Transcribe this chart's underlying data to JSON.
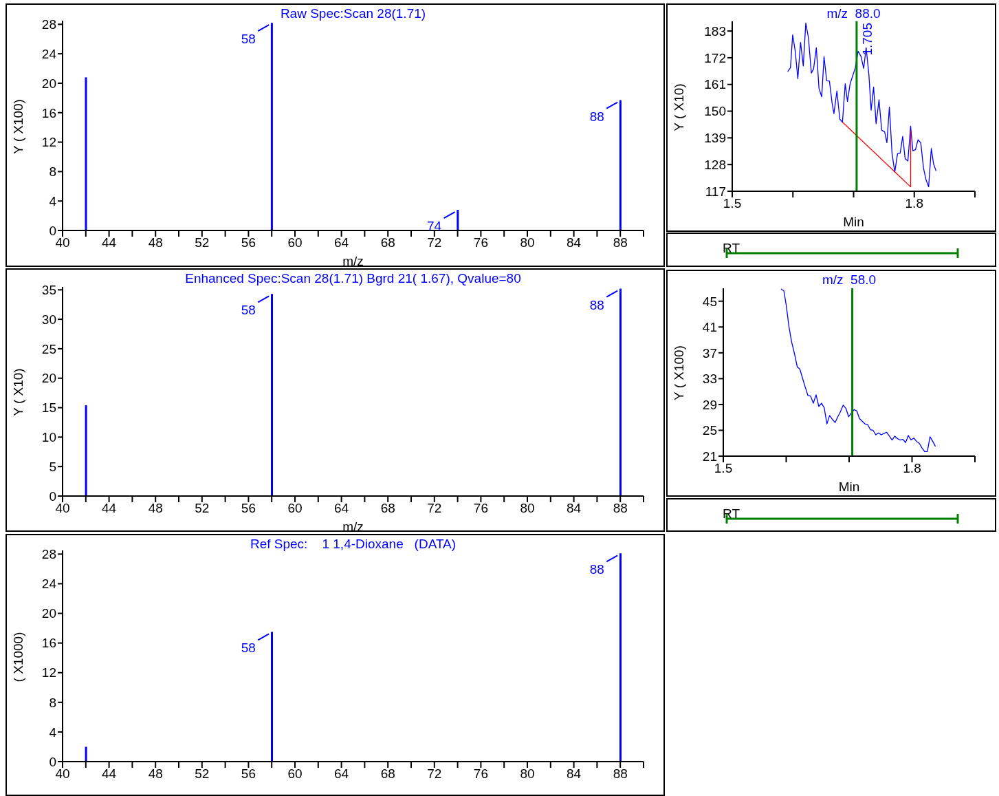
{
  "chart_data": [
    {
      "type": "bar",
      "title": "Raw Spec:Scan 28(1.71)",
      "xlabel": "m/z",
      "ylabel": "Y ( X100)",
      "x": [
        42,
        58,
        74,
        88
      ],
      "series": [
        {
          "color": "#0000ff",
          "values": [
            20.8,
            28.2,
            2.8,
            17.7
          ]
        }
      ],
      "xlim": [
        40,
        90
      ],
      "xticks": [
        40,
        {
          "value": 42,
          "label": null
        },
        44,
        {
          "value": 46,
          "label": null
        },
        48,
        {
          "value": 50,
          "label": null
        },
        52,
        {
          "value": 54,
          "label": null
        },
        56,
        {
          "value": 58,
          "label": null
        },
        60,
        {
          "value": 62,
          "label": null
        },
        64,
        {
          "value": 66,
          "label": null
        },
        68,
        {
          "value": 70,
          "label": null
        },
        72,
        {
          "value": 74,
          "label": null
        },
        76,
        {
          "value": 78,
          "label": null
        },
        80,
        {
          "value": 82,
          "label": null
        },
        84,
        {
          "value": 86,
          "label": null
        },
        88,
        {
          "value": 90,
          "label": null
        }
      ],
      "ylim": [
        0,
        28.5
      ],
      "yticks": [
        0,
        4,
        8,
        12,
        16,
        20,
        24,
        28
      ],
      "annotations": [
        {
          "text": "58",
          "x": 58,
          "y": 28.2
        },
        {
          "text": "74",
          "x": 74,
          "y": 2.8
        },
        {
          "text": "88",
          "x": 88,
          "y": 17.7
        }
      ]
    },
    {
      "type": "line",
      "title": "m/z  88.0",
      "xlabel": "Min",
      "ylabel": "Y ( X10)",
      "series": [
        {
          "color": "#0000ff",
          "x": [
            1.5914,
            1.596,
            1.5996,
            1.6037,
            1.6081,
            1.6126,
            1.6171,
            1.6212,
            1.6256,
            1.6304,
            1.6341,
            1.6386,
            1.643,
            1.6475,
            1.6513,
            1.6557,
            1.6602,
            1.6646,
            1.6676,
            1.6725,
            1.6773,
            1.6817,
            1.6862,
            1.6899,
            1.6943,
            1.7029,
            1.7074,
            1.7122,
            1.7166,
            1.7207,
            1.7252,
            1.7289,
            1.733,
            1.7371,
            1.7419,
            1.7464,
            1.7512,
            1.7549,
            1.759,
            1.7634,
            1.7679,
            1.7724,
            1.7768,
            1.7809,
            1.785,
            1.7895,
            1.794,
            1.7977,
            1.8021,
            1.8062,
            1.8107,
            1.8152,
            1.8192,
            1.8237,
            1.8281,
            1.8319,
            1.8359
          ],
          "values": [
            166.3,
            167.9,
            181.4,
            175,
            163.4,
            178.3,
            168.6,
            186.3,
            180.2,
            165.7,
            167.4,
            176.1,
            159.4,
            155.9,
            172.4,
            162.5,
            162.4,
            153.3,
            149,
            158.3,
            146.7,
            145.5,
            161.3,
            154,
            161.3,
            167.9,
            174.7,
            172.6,
            167.6,
            176.1,
            165.1,
            150.4,
            159.9,
            144.8,
            154.7,
            142.1,
            141.5,
            137,
            151.7,
            132.5,
            124.9,
            132.5,
            132.7,
            139.6,
            130.4,
            129.5,
            143.8,
            133.7,
            134.2,
            138.2,
            137,
            126.6,
            121.9,
            118.8,
            134.6,
            128.2,
            125.4
          ]
        },
        {
          "color": "#ff0000",
          "x": [
            1.6817,
            1.794,
            1.794
          ],
          "values": [
            145.5,
            118.8,
            142
          ]
        }
      ],
      "xlim": [
        1.5,
        1.9
      ],
      "xticks": [
        1.5,
        {
          "value": 1.6,
          "label": null
        },
        {
          "value": 1.7,
          "label": null
        },
        1.8,
        {
          "value": 1.9,
          "label": null
        }
      ],
      "ylim": [
        117,
        187
      ],
      "yticks": [
        117,
        128,
        139,
        150,
        161,
        172,
        183
      ],
      "ref_lines": [
        {
          "axis": "x",
          "value": 1.705,
          "label": "1.705",
          "color": "#008000"
        }
      ],
      "annotations": [
        "RT"
      ]
    },
    {
      "type": "bar",
      "title": "Enhanced Spec:Scan 28(1.71) Bgrd 21( 1.67), Qvalue=80",
      "xlabel": "m/z",
      "ylabel": "Y ( X10)",
      "x": [
        42,
        58,
        88
      ],
      "series": [
        {
          "color": "#0000ff",
          "values": [
            15.4,
            34.3,
            35.2
          ]
        }
      ],
      "xlim": [
        40,
        90
      ],
      "xticks": [
        40,
        {
          "value": 42,
          "label": null
        },
        44,
        {
          "value": 46,
          "label": null
        },
        48,
        {
          "value": 50,
          "label": null
        },
        52,
        {
          "value": 54,
          "label": null
        },
        56,
        {
          "value": 58,
          "label": null
        },
        60,
        {
          "value": 62,
          "label": null
        },
        64,
        {
          "value": 66,
          "label": null
        },
        68,
        {
          "value": 70,
          "label": null
        },
        72,
        {
          "value": 74,
          "label": null
        },
        76,
        {
          "value": 78,
          "label": null
        },
        80,
        {
          "value": 82,
          "label": null
        },
        84,
        {
          "value": 86,
          "label": null
        },
        88,
        {
          "value": 90,
          "label": null
        }
      ],
      "ylim": [
        0,
        35.5
      ],
      "yticks": [
        0,
        5,
        10,
        15,
        20,
        25,
        30,
        35
      ],
      "annotations": [
        {
          "text": "58",
          "x": 58,
          "y": 34.3
        },
        {
          "text": "88",
          "x": 88,
          "y": 35.2
        }
      ]
    },
    {
      "type": "line",
      "title": "m/z  58.0",
      "xlabel": "Min",
      "ylabel": "Y ( X100)",
      "series": [
        {
          "color": "#0000ff",
          "x": [
            1.5917,
            1.5963,
            1.6,
            1.6043,
            1.6086,
            1.6133,
            1.6176,
            1.6216,
            1.6259,
            1.6302,
            1.6345,
            1.6388,
            1.6431,
            1.6475,
            1.6518,
            1.6561,
            1.6604,
            1.6647,
            1.669,
            1.6734,
            1.6777,
            1.682,
            1.6863,
            1.6906,
            1.6949,
            1.6992,
            1.7036,
            1.7079,
            1.7122,
            1.7165,
            1.7208,
            1.7251,
            1.7294,
            1.7338,
            1.7381,
            1.7424,
            1.7467,
            1.751,
            1.7553,
            1.7596,
            1.764,
            1.7683,
            1.7726,
            1.7769,
            1.7812,
            1.7855,
            1.7898,
            1.7941,
            1.7985,
            1.8028,
            1.8071,
            1.8114,
            1.8157,
            1.82,
            1.8243,
            1.8286,
            1.8329,
            1.8372
          ],
          "values": [
            46.9,
            46.6,
            44.4,
            41.1,
            38.7,
            36.8,
            34.8,
            34.5,
            33.1,
            31.7,
            30.4,
            30.3,
            29.2,
            30.5,
            28.7,
            29.2,
            28.5,
            26,
            27.3,
            26.7,
            26.2,
            27.1,
            27.9,
            28.9,
            28.4,
            27.1,
            27.7,
            28.2,
            28,
            26.8,
            26.4,
            26,
            25.9,
            25.1,
            25,
            24.3,
            24.6,
            24.3,
            24.5,
            24.7,
            24.1,
            23.5,
            24.1,
            23.7,
            23.5,
            23.6,
            23.1,
            24.2,
            23.5,
            23.8,
            23.3,
            23,
            22.3,
            21.7,
            21.7,
            24,
            23.3,
            22.5
          ]
        }
      ],
      "xlim": [
        1.5,
        1.9
      ],
      "xticks": [
        1.5,
        {
          "value": 1.6,
          "label": null
        },
        {
          "value": 1.7,
          "label": null
        },
        1.8,
        {
          "value": 1.9,
          "label": null
        }
      ],
      "ylim": [
        21,
        47
      ],
      "yticks": [
        21,
        25,
        29,
        33,
        37,
        41,
        45
      ],
      "ref_lines": [
        {
          "axis": "x",
          "value": 1.705,
          "color": "#008000"
        }
      ],
      "annotations": [
        "RT"
      ]
    },
    {
      "type": "bar",
      "title": "Ref Spec:    1 1,4-Dioxane   (DATA)",
      "ylabel": "( X1000)",
      "x": [
        42,
        58,
        88
      ],
      "series": [
        {
          "color": "#0000ff",
          "values": [
            2.0,
            17.5,
            28.1
          ]
        }
      ],
      "xlim": [
        40,
        90
      ],
      "xticks": [
        40,
        {
          "value": 42,
          "label": null
        },
        44,
        {
          "value": 46,
          "label": null
        },
        48,
        {
          "value": 50,
          "label": null
        },
        52,
        {
          "value": 54,
          "label": null
        },
        56,
        {
          "value": 58,
          "label": null
        },
        60,
        {
          "value": 62,
          "label": null
        },
        64,
        {
          "value": 66,
          "label": null
        },
        68,
        {
          "value": 70,
          "label": null
        },
        72,
        {
          "value": 74,
          "label": null
        },
        76,
        {
          "value": 78,
          "label": null
        },
        80,
        {
          "value": 82,
          "label": null
        },
        84,
        {
          "value": 86,
          "label": null
        },
        88,
        {
          "value": 90,
          "label": null
        }
      ],
      "ylim": [
        0,
        28.5
      ],
      "yticks": [
        0,
        4,
        8,
        12,
        16,
        20,
        24,
        28
      ],
      "annotations": [
        {
          "text": "58",
          "x": 58,
          "y": 17.5
        },
        {
          "text": "88",
          "x": 88,
          "y": 28.1
        }
      ]
    }
  ]
}
